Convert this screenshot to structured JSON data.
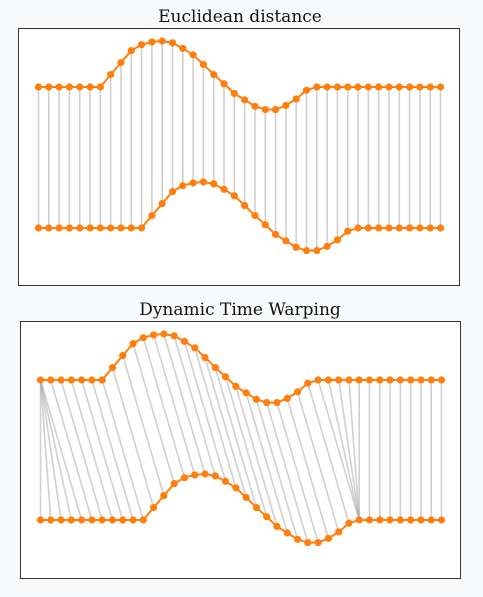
{
  "colors": {
    "series": "#ff7f0e",
    "link": "#a9a9a9",
    "background": "#f8f9fa",
    "panel": "#ffffff",
    "frame": "#333333"
  },
  "chart_data": [
    {
      "type": "line",
      "title": "Euclidean distance",
      "link_mode": "euclidean",
      "axes_visible": false,
      "x": [
        0,
        1,
        2,
        3,
        4,
        5,
        6,
        7,
        8,
        9,
        10,
        11,
        12,
        13,
        14,
        15,
        16,
        17,
        18,
        19,
        20,
        21,
        22,
        23,
        24,
        25,
        26,
        27,
        28,
        29,
        30,
        31,
        32,
        33,
        34,
        35,
        36,
        37,
        38,
        39
      ],
      "series": [
        {
          "values": [
            0,
            0,
            0,
            0,
            0,
            0,
            0,
            0.27,
            0.53,
            0.79,
            0.92,
            0.98,
            1.0,
            0.96,
            0.84,
            0.7,
            0.49,
            0.27,
            0.07,
            -0.14,
            -0.28,
            -0.42,
            -0.49,
            -0.49,
            -0.4,
            -0.26,
            -0.07,
            0,
            0,
            0,
            0,
            0,
            0,
            0,
            0,
            0,
            0,
            0,
            0,
            0
          ]
        },
        {
          "values": [
            0,
            0,
            0,
            0,
            0,
            0,
            0,
            0,
            0,
            0,
            0,
            0.27,
            0.53,
            0.79,
            0.92,
            0.98,
            1.0,
            0.96,
            0.84,
            0.7,
            0.49,
            0.27,
            0.07,
            -0.14,
            -0.28,
            -0.42,
            -0.49,
            -0.49,
            -0.4,
            -0.26,
            -0.07,
            0,
            0,
            0,
            0,
            0,
            0,
            0,
            0,
            0
          ]
        }
      ]
    },
    {
      "type": "line",
      "title": "Dynamic Time Warping",
      "link_mode": "dtw",
      "axes_visible": false,
      "x": [
        0,
        1,
        2,
        3,
        4,
        5,
        6,
        7,
        8,
        9,
        10,
        11,
        12,
        13,
        14,
        15,
        16,
        17,
        18,
        19,
        20,
        21,
        22,
        23,
        24,
        25,
        26,
        27,
        28,
        29,
        30,
        31,
        32,
        33,
        34,
        35,
        36,
        37,
        38,
        39
      ],
      "series": [
        {
          "values": [
            0,
            0,
            0,
            0,
            0,
            0,
            0,
            0.27,
            0.53,
            0.79,
            0.92,
            0.98,
            1.0,
            0.96,
            0.84,
            0.7,
            0.49,
            0.27,
            0.07,
            -0.14,
            -0.28,
            -0.42,
            -0.49,
            -0.49,
            -0.4,
            -0.26,
            -0.07,
            0,
            0,
            0,
            0,
            0,
            0,
            0,
            0,
            0,
            0,
            0,
            0,
            0
          ]
        },
        {
          "values": [
            0,
            0,
            0,
            0,
            0,
            0,
            0,
            0,
            0,
            0,
            0,
            0.27,
            0.53,
            0.79,
            0.92,
            0.98,
            1.0,
            0.96,
            0.84,
            0.7,
            0.49,
            0.27,
            0.07,
            -0.14,
            -0.28,
            -0.42,
            -0.49,
            -0.49,
            -0.4,
            -0.26,
            -0.07,
            0,
            0,
            0,
            0,
            0,
            0,
            0,
            0,
            0
          ]
        }
      ]
    }
  ]
}
